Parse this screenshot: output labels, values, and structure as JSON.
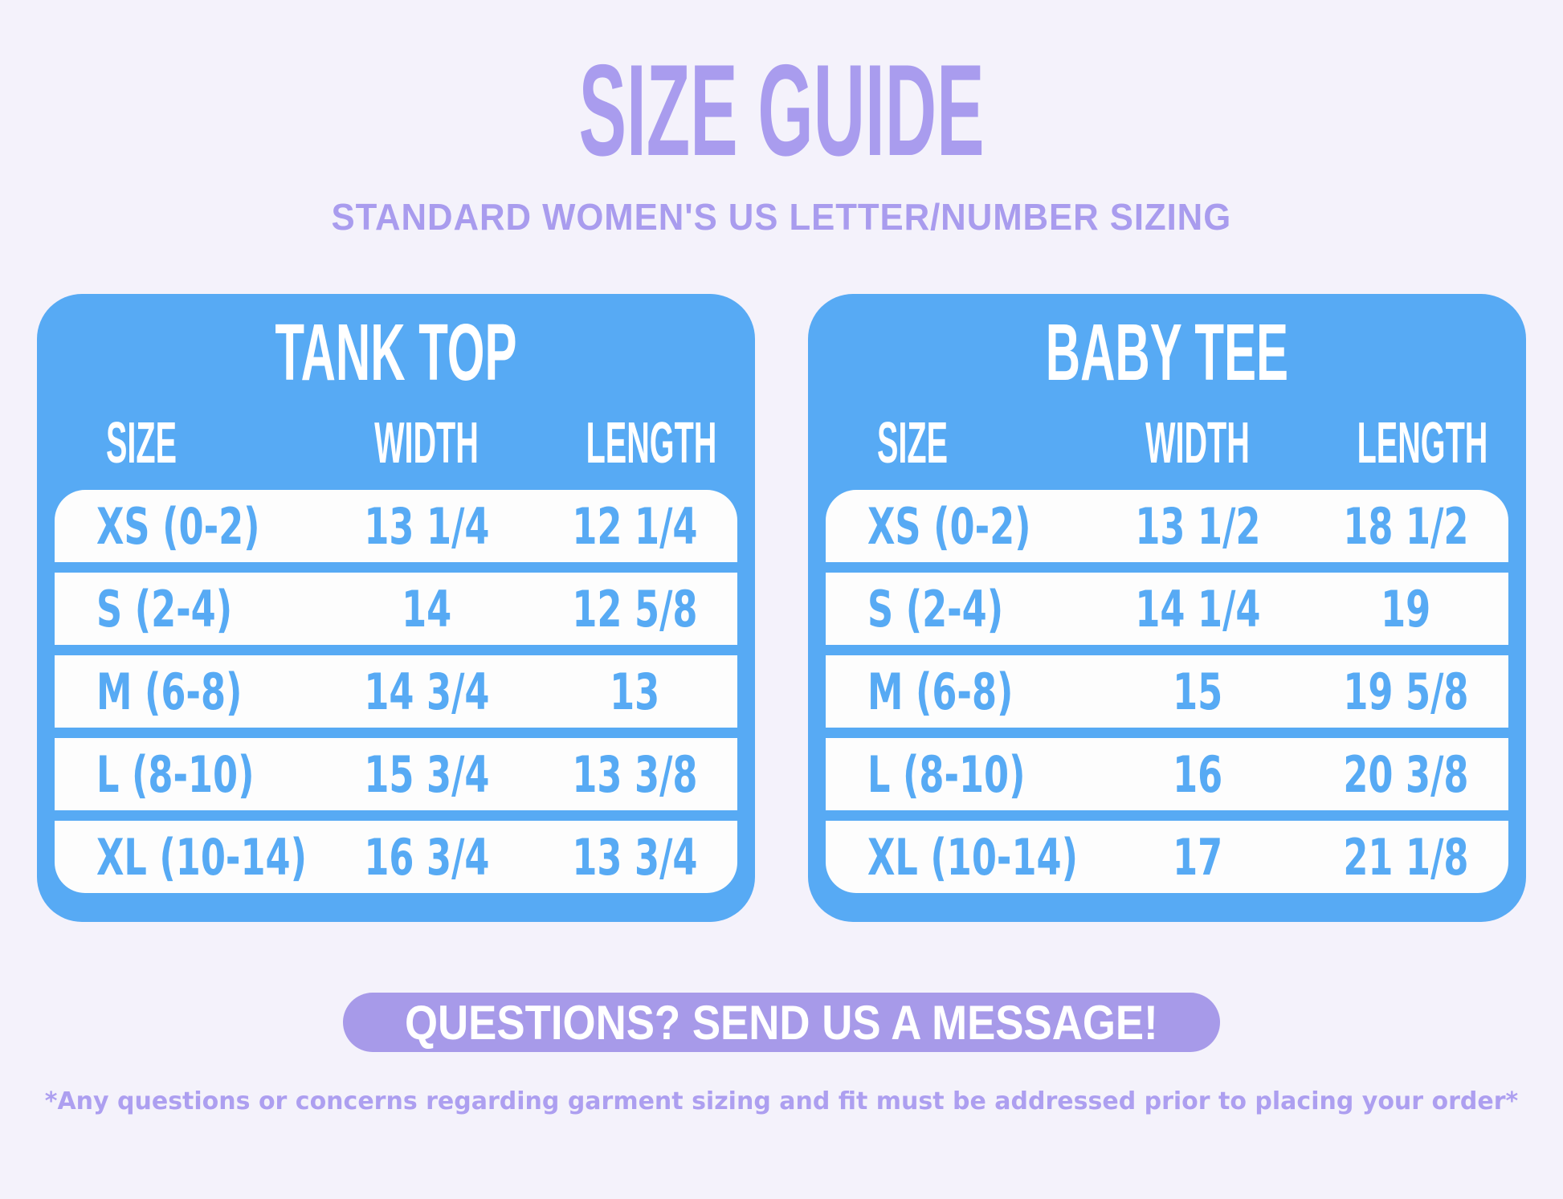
{
  "page": {
    "title": "SIZE GUIDE",
    "subtitle": "STANDARD WOMEN'S US LETTER/NUMBER SIZING",
    "colors": {
      "background": "#f4f2fb",
      "accent_purple": "#a99cee",
      "card_blue": "#57aaf4",
      "button_purple": "#a79ae9",
      "row_white": "#fdfdfd"
    }
  },
  "tables": [
    {
      "title": "TANK TOP",
      "columns": {
        "size": "SIZE",
        "width": "WIDTH",
        "length": "LENGTH"
      },
      "rows": [
        {
          "size": "XS (0-2)",
          "width": "13 1/4",
          "length": "12 1/4"
        },
        {
          "size": "S (2-4)",
          "width": "14",
          "length": "12 5/8"
        },
        {
          "size": "M (6-8)",
          "width": "14 3/4",
          "length": "13"
        },
        {
          "size": "L (8-10)",
          "width": "15 3/4",
          "length": "13 3/8"
        },
        {
          "size": "XL (10-14)",
          "width": "16 3/4",
          "length": "13 3/4"
        }
      ]
    },
    {
      "title": "BABY TEE",
      "columns": {
        "size": "SIZE",
        "width": "WIDTH",
        "length": "LENGTH"
      },
      "rows": [
        {
          "size": "XS (0-2)",
          "width": "13 1/2",
          "length": "18 1/2"
        },
        {
          "size": "S (2-4)",
          "width": "14 1/4",
          "length": "19"
        },
        {
          "size": "M (6-8)",
          "width": "15",
          "length": "19 5/8"
        },
        {
          "size": "L (8-10)",
          "width": "16",
          "length": "20 3/8"
        },
        {
          "size": "XL (10-14)",
          "width": "17",
          "length": "21 1/8"
        }
      ]
    }
  ],
  "cta": {
    "label": "QUESTIONS? SEND US A MESSAGE!"
  },
  "footer": {
    "note": "*Any questions or concerns regarding garment sizing and fit must be addressed prior to placing your order*"
  }
}
